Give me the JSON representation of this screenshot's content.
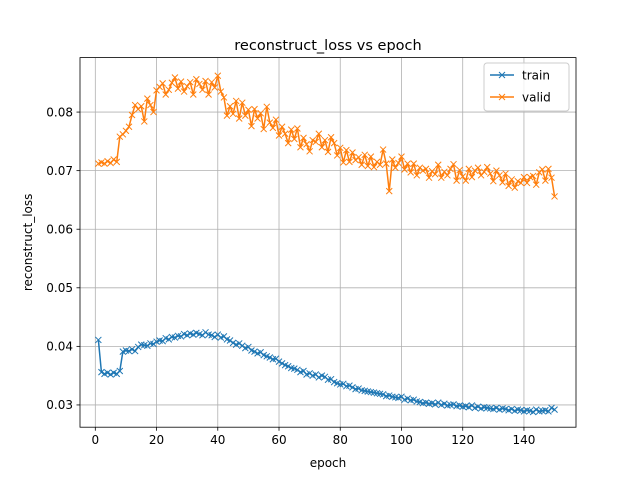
{
  "chart_data": {
    "type": "line",
    "title": "reconstruct_loss vs epoch",
    "xlabel": "epoch",
    "ylabel": "reconstruct_loss",
    "xlim": [
      -5,
      157
    ],
    "ylim": [
      0.0262,
      0.0893
    ],
    "xticks": [
      0,
      20,
      40,
      60,
      80,
      100,
      120,
      140
    ],
    "yticks": [
      0.03,
      0.04,
      0.05,
      0.06,
      0.07,
      0.08
    ],
    "ytick_labels": [
      "0.03",
      "0.04",
      "0.05",
      "0.06",
      "0.07",
      "0.08"
    ],
    "grid": true,
    "legend_position": "top-right",
    "marker": "x",
    "series": [
      {
        "name": "train",
        "color": "#1f77b4",
        "x": [
          1,
          2,
          3,
          4,
          5,
          6,
          7,
          8,
          9,
          10,
          11,
          12,
          13,
          14,
          15,
          16,
          17,
          18,
          19,
          20,
          21,
          22,
          23,
          24,
          25,
          26,
          27,
          28,
          29,
          30,
          31,
          32,
          33,
          34,
          35,
          36,
          37,
          38,
          39,
          40,
          41,
          42,
          43,
          44,
          45,
          46,
          47,
          48,
          49,
          50,
          51,
          52,
          53,
          54,
          55,
          56,
          57,
          58,
          59,
          60,
          61,
          62,
          63,
          64,
          65,
          66,
          67,
          68,
          69,
          70,
          71,
          72,
          73,
          74,
          75,
          76,
          77,
          78,
          79,
          80,
          81,
          82,
          83,
          84,
          85,
          86,
          87,
          88,
          89,
          90,
          91,
          92,
          93,
          94,
          95,
          96,
          97,
          98,
          99,
          100,
          101,
          102,
          103,
          104,
          105,
          106,
          107,
          108,
          109,
          110,
          111,
          112,
          113,
          114,
          115,
          116,
          117,
          118,
          119,
          120,
          121,
          122,
          123,
          124,
          125,
          126,
          127,
          128,
          129,
          130,
          131,
          132,
          133,
          134,
          135,
          136,
          137,
          138,
          139,
          140,
          141,
          142,
          143,
          144,
          145,
          146,
          147,
          148,
          149,
          150
        ],
        "y": [
          0.0411,
          0.0356,
          0.0353,
          0.0355,
          0.0352,
          0.0355,
          0.0353,
          0.0358,
          0.0391,
          0.0393,
          0.0392,
          0.0395,
          0.0392,
          0.0399,
          0.0403,
          0.0402,
          0.0401,
          0.0405,
          0.0404,
          0.0408,
          0.041,
          0.0409,
          0.0414,
          0.0412,
          0.0416,
          0.0415,
          0.0418,
          0.0417,
          0.0421,
          0.0419,
          0.0422,
          0.042,
          0.0423,
          0.0421,
          0.0419,
          0.0424,
          0.042,
          0.0419,
          0.0416,
          0.042,
          0.0415,
          0.0417,
          0.0412,
          0.041,
          0.0406,
          0.0403,
          0.0405,
          0.0401,
          0.0397,
          0.0399,
          0.0393,
          0.0391,
          0.0388,
          0.039,
          0.0385,
          0.0383,
          0.0381,
          0.0378,
          0.0379,
          0.0374,
          0.0371,
          0.0368,
          0.0366,
          0.0363,
          0.0362,
          0.036,
          0.0356,
          0.0358,
          0.0352,
          0.0354,
          0.035,
          0.0352,
          0.0347,
          0.035,
          0.0348,
          0.0343,
          0.0344,
          0.0339,
          0.0337,
          0.0335,
          0.0336,
          0.0332,
          0.0333,
          0.033,
          0.0327,
          0.0328,
          0.0325,
          0.0324,
          0.0323,
          0.0322,
          0.0321,
          0.032,
          0.0319,
          0.0318,
          0.0315,
          0.0316,
          0.0314,
          0.0313,
          0.0312,
          0.0314,
          0.0309,
          0.0311,
          0.0308,
          0.0309,
          0.0306,
          0.0305,
          0.0303,
          0.0304,
          0.0302,
          0.0303,
          0.0301,
          0.0304,
          0.03,
          0.0302,
          0.0299,
          0.03,
          0.0301,
          0.0298,
          0.0299,
          0.0297,
          0.0298,
          0.0296,
          0.0299,
          0.0295,
          0.0297,
          0.0294,
          0.0296,
          0.0295,
          0.0294,
          0.0293,
          0.0295,
          0.0292,
          0.0294,
          0.0293,
          0.0291,
          0.0293,
          0.029,
          0.0292,
          0.0291,
          0.0289,
          0.0291,
          0.029,
          0.0288,
          0.0292,
          0.0289,
          0.029,
          0.0291,
          0.0289,
          0.0295,
          0.0292
        ]
      },
      {
        "name": "valid",
        "color": "#ff7f0e",
        "x": [
          1,
          2,
          3,
          4,
          5,
          6,
          7,
          8,
          9,
          10,
          11,
          12,
          13,
          14,
          15,
          16,
          17,
          18,
          19,
          20,
          21,
          22,
          23,
          24,
          25,
          26,
          27,
          28,
          29,
          30,
          31,
          32,
          33,
          34,
          35,
          36,
          37,
          38,
          39,
          40,
          41,
          42,
          43,
          44,
          45,
          46,
          47,
          48,
          49,
          50,
          51,
          52,
          53,
          54,
          55,
          56,
          57,
          58,
          59,
          60,
          61,
          62,
          63,
          64,
          65,
          66,
          67,
          68,
          69,
          70,
          71,
          72,
          73,
          74,
          75,
          76,
          77,
          78,
          79,
          80,
          81,
          82,
          83,
          84,
          85,
          86,
          87,
          88,
          89,
          90,
          91,
          92,
          93,
          94,
          95,
          96,
          97,
          98,
          99,
          100,
          101,
          102,
          103,
          104,
          105,
          106,
          107,
          108,
          109,
          110,
          111,
          112,
          113,
          114,
          115,
          116,
          117,
          118,
          119,
          120,
          121,
          122,
          123,
          124,
          125,
          126,
          127,
          128,
          129,
          130,
          131,
          132,
          133,
          134,
          135,
          136,
          137,
          138,
          139,
          140,
          141,
          142,
          143,
          144,
          145,
          146,
          147,
          148,
          149,
          150
        ],
        "y": [
          0.0712,
          0.0714,
          0.0712,
          0.0716,
          0.0713,
          0.0719,
          0.0715,
          0.0758,
          0.0762,
          0.0768,
          0.0775,
          0.0795,
          0.0812,
          0.0805,
          0.081,
          0.0784,
          0.0823,
          0.0812,
          0.08,
          0.0837,
          0.0843,
          0.0849,
          0.083,
          0.0838,
          0.085,
          0.0859,
          0.084,
          0.0852,
          0.0835,
          0.0844,
          0.0851,
          0.083,
          0.0856,
          0.0848,
          0.0838,
          0.0853,
          0.083,
          0.0851,
          0.0842,
          0.0862,
          0.0835,
          0.0825,
          0.0794,
          0.081,
          0.0797,
          0.0819,
          0.0789,
          0.0816,
          0.0794,
          0.0804,
          0.0776,
          0.0805,
          0.0789,
          0.0798,
          0.0771,
          0.0809,
          0.0782,
          0.0773,
          0.0787,
          0.076,
          0.0775,
          0.0763,
          0.0747,
          0.077,
          0.0754,
          0.0772,
          0.074,
          0.0756,
          0.0745,
          0.0733,
          0.0752,
          0.0749,
          0.0763,
          0.074,
          0.0752,
          0.0732,
          0.0757,
          0.0747,
          0.0726,
          0.0739,
          0.0714,
          0.0735,
          0.0715,
          0.0731,
          0.0718,
          0.0723,
          0.071,
          0.0727,
          0.0708,
          0.0724,
          0.0706,
          0.0715,
          0.071,
          0.0736,
          0.0712,
          0.0665,
          0.0719,
          0.0705,
          0.0713,
          0.0724,
          0.0702,
          0.0712,
          0.0697,
          0.0712,
          0.0692,
          0.0705,
          0.07,
          0.0703,
          0.0688,
          0.0699,
          0.0694,
          0.071,
          0.0688,
          0.0698,
          0.0692,
          0.0703,
          0.0711,
          0.0683,
          0.0701,
          0.069,
          0.0683,
          0.0703,
          0.0689,
          0.07,
          0.0705,
          0.0692,
          0.0698,
          0.0706,
          0.0695,
          0.0682,
          0.07,
          0.0692,
          0.068,
          0.0695,
          0.0674,
          0.0685,
          0.0671,
          0.0682,
          0.0679,
          0.0689,
          0.0679,
          0.0689,
          0.0691,
          0.0676,
          0.0697,
          0.0702,
          0.0683,
          0.0703,
          0.0688,
          0.0656
        ]
      }
    ]
  }
}
